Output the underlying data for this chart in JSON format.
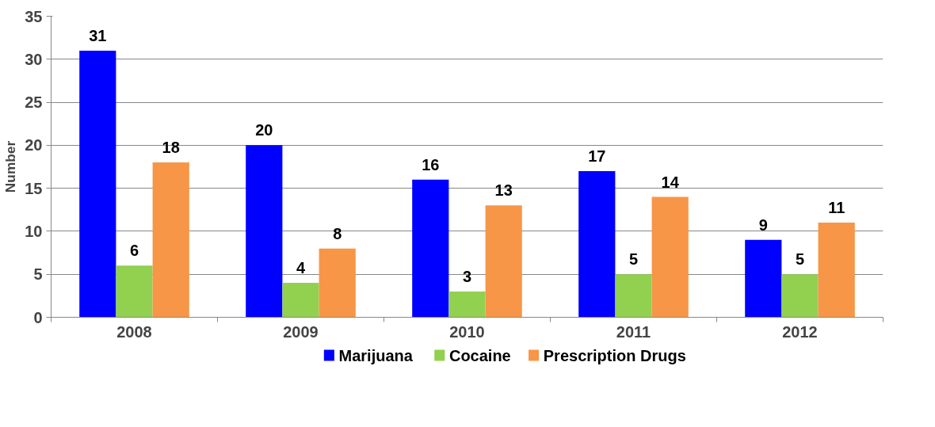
{
  "chart_data": {
    "type": "bar",
    "ylabel": "Number",
    "categories": [
      "2008",
      "2009",
      "2010",
      "2011",
      "2012"
    ],
    "series": [
      {
        "name": "Marijuana",
        "color": "#0000ff",
        "values": [
          31,
          20,
          16,
          17,
          9
        ]
      },
      {
        "name": "Cocaine",
        "color": "#92d050",
        "values": [
          6,
          4,
          3,
          5,
          5
        ]
      },
      {
        "name": "Prescription Drugs",
        "color": "#f79646",
        "values": [
          18,
          8,
          13,
          14,
          11
        ]
      }
    ],
    "ylim": [
      0,
      35
    ],
    "yticks": [
      0,
      5,
      10,
      15,
      20,
      25,
      30,
      35
    ],
    "grid": "y",
    "legend": "bottom",
    "data_labels": true
  }
}
